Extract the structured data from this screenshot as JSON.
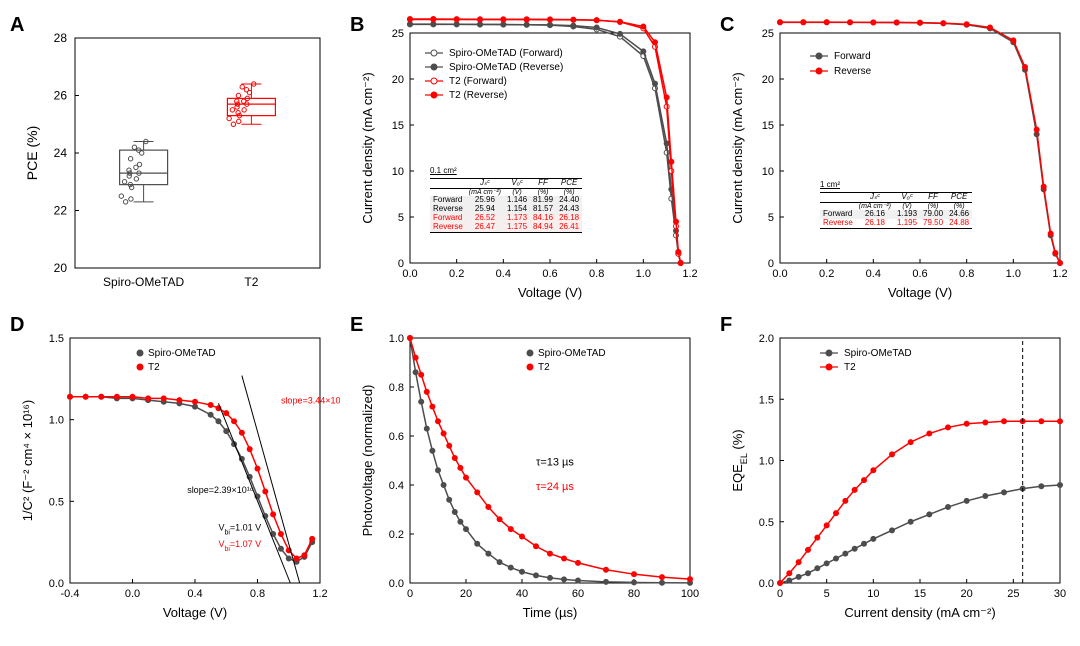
{
  "colors": {
    "spiro": "#4d4d4d",
    "t2": "#ff0000",
    "black": "#000000",
    "bg": "#ffffff",
    "grid": "#e0e0e0",
    "shade": "#e8e8e8"
  },
  "panelA": {
    "label": "A",
    "type": "boxplot",
    "ylabel": "PCE (%)",
    "ylim": [
      20,
      28
    ],
    "ytick_step": 2,
    "categories": [
      "Spiro-OMeTAD",
      "T2"
    ],
    "boxes": [
      {
        "name": "Spiro-OMeTAD",
        "color": "#4d4d4d",
        "min": 22.3,
        "q1": 22.9,
        "median": 23.3,
        "q3": 24.1,
        "max": 24.4,
        "points": [
          22.3,
          22.4,
          22.5,
          22.8,
          22.9,
          23.0,
          23.1,
          23.2,
          23.3,
          23.3,
          23.4,
          23.5,
          23.6,
          23.8,
          24.0,
          24.1,
          24.2,
          24.4
        ]
      },
      {
        "name": "T2",
        "color": "#ff0000",
        "min": 25.0,
        "q1": 25.3,
        "median": 25.7,
        "q3": 25.9,
        "max": 26.4,
        "points": [
          25.0,
          25.1,
          25.2,
          25.3,
          25.4,
          25.5,
          25.5,
          25.6,
          25.7,
          25.7,
          25.8,
          25.8,
          25.9,
          26.0,
          26.1,
          26.2,
          26.3,
          26.4
        ]
      }
    ]
  },
  "panelB": {
    "label": "B",
    "type": "line",
    "xlabel": "Voltage (V)",
    "ylabel": "Current density (mA cm⁻²)",
    "area_label": "0.1 cm²",
    "xlim": [
      0.0,
      1.2
    ],
    "xtick_step": 0.2,
    "ylim": [
      0,
      25
    ],
    "ytick_step": 5,
    "legend": [
      {
        "label": "Spiro-OMeTAD (Forward)",
        "color": "#4d4d4d",
        "marker": "open"
      },
      {
        "label": "Spiro-OMeTAD (Reverse)",
        "color": "#4d4d4d",
        "marker": "filled"
      },
      {
        "label": "T2 (Forward)",
        "color": "#ff0000",
        "marker": "open"
      },
      {
        "label": "T2 (Reverse)",
        "color": "#ff0000",
        "marker": "filled"
      }
    ],
    "x": [
      0.0,
      0.1,
      0.2,
      0.3,
      0.4,
      0.5,
      0.6,
      0.7,
      0.8,
      0.9,
      1.0,
      1.05,
      1.1,
      1.12,
      1.14,
      1.15,
      1.16
    ],
    "series": {
      "spiro_fwd": [
        25.96,
        25.96,
        25.95,
        25.94,
        25.92,
        25.9,
        25.85,
        25.7,
        25.4,
        24.6,
        22.5,
        19.0,
        12.0,
        7.0,
        3.0,
        1.0,
        0.0
      ],
      "spiro_rev": [
        25.94,
        25.94,
        25.94,
        25.93,
        25.92,
        25.9,
        25.88,
        25.8,
        25.6,
        24.9,
        23.0,
        19.5,
        13.0,
        8.0,
        3.5,
        1.2,
        0.0
      ],
      "t2_fwd": [
        26.52,
        26.52,
        26.51,
        26.5,
        26.5,
        26.49,
        26.48,
        26.45,
        26.4,
        26.2,
        25.5,
        23.5,
        17.0,
        10.0,
        4.0,
        1.0,
        0.0
      ],
      "t2_rev": [
        26.47,
        26.47,
        26.47,
        26.46,
        26.46,
        26.45,
        26.44,
        26.42,
        26.38,
        26.22,
        25.7,
        24.0,
        18.0,
        11.0,
        4.5,
        1.2,
        0.0
      ]
    },
    "table": {
      "columns": [
        "",
        "Jₛᶜ (mA cm⁻²)",
        "Vₒᶜ (V)",
        "FF (%)",
        "PCE (%)"
      ],
      "rows": [
        {
          "label": "Forward",
          "vals": [
            "25.96",
            "1.146",
            "81.99",
            "24.40"
          ],
          "color": "#000000"
        },
        {
          "label": "Reverse",
          "vals": [
            "25.94",
            "1.154",
            "81.57",
            "24.43"
          ],
          "color": "#000000"
        },
        {
          "label": "Forward",
          "vals": [
            "26.52",
            "1.173",
            "84.16",
            "26.18"
          ],
          "color": "#ff0000"
        },
        {
          "label": "Reverse",
          "vals": [
            "26.47",
            "1.175",
            "84.94",
            "26.41"
          ],
          "color": "#ff0000"
        }
      ]
    }
  },
  "panelC": {
    "label": "C",
    "type": "line",
    "area_label": "1 cm²",
    "xlabel": "Voltage (V)",
    "ylabel": "Current density (mA cm⁻²)",
    "xlim": [
      0.0,
      1.2
    ],
    "xtick_step": 0.2,
    "ylim": [
      0,
      25
    ],
    "ytick_step": 5,
    "legend": [
      {
        "label": "Forward",
        "color": "#4d4d4d",
        "marker": "filled"
      },
      {
        "label": "Reverse",
        "color": "#ff0000",
        "marker": "filled"
      }
    ],
    "x": [
      0.0,
      0.1,
      0.2,
      0.3,
      0.4,
      0.5,
      0.6,
      0.7,
      0.8,
      0.9,
      1.0,
      1.05,
      1.1,
      1.13,
      1.16,
      1.18,
      1.2
    ],
    "series": {
      "fwd": [
        26.16,
        26.16,
        26.16,
        26.15,
        26.14,
        26.13,
        26.1,
        26.05,
        25.9,
        25.5,
        24.0,
        21.0,
        14.0,
        8.0,
        3.0,
        1.0,
        0.0
      ],
      "rev": [
        26.18,
        26.18,
        26.18,
        26.17,
        26.16,
        26.15,
        26.13,
        26.08,
        25.95,
        25.6,
        24.2,
        21.3,
        14.5,
        8.3,
        3.2,
        1.1,
        0.0
      ]
    },
    "table": {
      "columns": [
        "",
        "Jₛᶜ (mA cm⁻²)",
        "Vₒᶜ (V)",
        "FF (%)",
        "PCE (%)"
      ],
      "rows": [
        {
          "label": "Forward",
          "vals": [
            "26.16",
            "1.193",
            "79.00",
            "24.66"
          ],
          "color": "#000000"
        },
        {
          "label": "Reverse",
          "vals": [
            "26.18",
            "1.195",
            "79.50",
            "24.88"
          ],
          "color": "#ff0000"
        }
      ]
    }
  },
  "panelD": {
    "label": "D",
    "type": "line",
    "xlabel": "Voltage (V)",
    "ylabel": "1/C² (F⁻² cm⁴ × 10¹⁶)",
    "xlim": [
      -0.4,
      1.2
    ],
    "xtick_step": 0.4,
    "ylim": [
      0.0,
      1.5
    ],
    "ytick_step": 0.5,
    "legend": [
      {
        "label": "Spiro-OMeTAD",
        "color": "#4d4d4d"
      },
      {
        "label": "T2",
        "color": "#ff0000"
      }
    ],
    "x": [
      -0.4,
      -0.3,
      -0.2,
      -0.1,
      0.0,
      0.1,
      0.2,
      0.3,
      0.4,
      0.5,
      0.55,
      0.6,
      0.65,
      0.7,
      0.75,
      0.8,
      0.85,
      0.9,
      0.95,
      1.0,
      1.05,
      1.1,
      1.15
    ],
    "series": {
      "spiro": [
        1.14,
        1.14,
        1.14,
        1.13,
        1.13,
        1.12,
        1.11,
        1.1,
        1.08,
        1.03,
        0.99,
        0.93,
        0.85,
        0.76,
        0.65,
        0.53,
        0.41,
        0.3,
        0.21,
        0.15,
        0.13,
        0.16,
        0.25
      ],
      "t2": [
        1.14,
        1.14,
        1.14,
        1.14,
        1.14,
        1.13,
        1.13,
        1.12,
        1.11,
        1.09,
        1.07,
        1.04,
        0.99,
        0.92,
        0.82,
        0.7,
        0.56,
        0.42,
        0.3,
        0.2,
        0.15,
        0.17,
        0.27
      ]
    },
    "annotations": {
      "slope_t2": {
        "text": "slope=3.44×10¹⁶",
        "color": "#ff0000"
      },
      "slope_spiro": {
        "text": "slope=2.39×10¹⁶",
        "color": "#000000"
      },
      "vbi_spiro": {
        "text": "V_bi=1.01 V",
        "color": "#000000"
      },
      "vbi_t2": {
        "text": "V_bi=1.07 V",
        "color": "#ff0000"
      }
    }
  },
  "panelE": {
    "label": "E",
    "type": "line",
    "xlabel": "Time (µs)",
    "ylabel": "Photovoltage (normalized)",
    "xlim": [
      0,
      100
    ],
    "xtick_step": 20,
    "ylim": [
      0.0,
      1.0
    ],
    "ytick_step": 0.2,
    "legend": [
      {
        "label": "Spiro-OMeTAD",
        "color": "#4d4d4d"
      },
      {
        "label": "T2",
        "color": "#ff0000"
      }
    ],
    "annotations": {
      "tau_spiro": {
        "text": "τ=13 µs",
        "color": "#000000"
      },
      "tau_t2": {
        "text": "τ=24 µs",
        "color": "#ff0000"
      }
    },
    "x": [
      0,
      2,
      4,
      6,
      8,
      10,
      12,
      14,
      16,
      18,
      20,
      24,
      28,
      32,
      36,
      40,
      45,
      50,
      55,
      60,
      70,
      80,
      90,
      100
    ],
    "series": {
      "spiro": [
        1.0,
        0.86,
        0.74,
        0.63,
        0.54,
        0.46,
        0.4,
        0.34,
        0.29,
        0.25,
        0.22,
        0.16,
        0.12,
        0.085,
        0.063,
        0.046,
        0.031,
        0.021,
        0.015,
        0.01,
        0.0048,
        0.0023,
        0.001,
        0.0005
      ],
      "t2": [
        1.0,
        0.92,
        0.85,
        0.78,
        0.72,
        0.66,
        0.61,
        0.56,
        0.51,
        0.47,
        0.43,
        0.37,
        0.31,
        0.26,
        0.22,
        0.19,
        0.15,
        0.12,
        0.1,
        0.082,
        0.054,
        0.036,
        0.024,
        0.016
      ]
    }
  },
  "panelF": {
    "label": "F",
    "type": "line",
    "xlabel": "Current density (mA cm⁻²)",
    "ylabel": "EQE_EL (%)",
    "xlim": [
      0,
      30
    ],
    "xtick_step": 5,
    "ylim": [
      0.0,
      2.0
    ],
    "ytick_step": 0.5,
    "legend": [
      {
        "label": "Spiro-OMeTAD",
        "color": "#4d4d4d"
      },
      {
        "label": "T2",
        "color": "#ff0000"
      }
    ],
    "vline_at": 26,
    "x": [
      0,
      1,
      2,
      3,
      4,
      5,
      6,
      7,
      8,
      9,
      10,
      12,
      14,
      16,
      18,
      20,
      22,
      24,
      26,
      28,
      30
    ],
    "series": {
      "spiro": [
        0.0,
        0.02,
        0.05,
        0.08,
        0.12,
        0.16,
        0.2,
        0.24,
        0.28,
        0.32,
        0.36,
        0.43,
        0.5,
        0.56,
        0.62,
        0.67,
        0.71,
        0.74,
        0.77,
        0.79,
        0.8
      ],
      "t2": [
        0.0,
        0.08,
        0.17,
        0.27,
        0.37,
        0.47,
        0.57,
        0.67,
        0.76,
        0.84,
        0.92,
        1.05,
        1.15,
        1.22,
        1.27,
        1.3,
        1.31,
        1.32,
        1.32,
        1.32,
        1.32
      ]
    }
  }
}
